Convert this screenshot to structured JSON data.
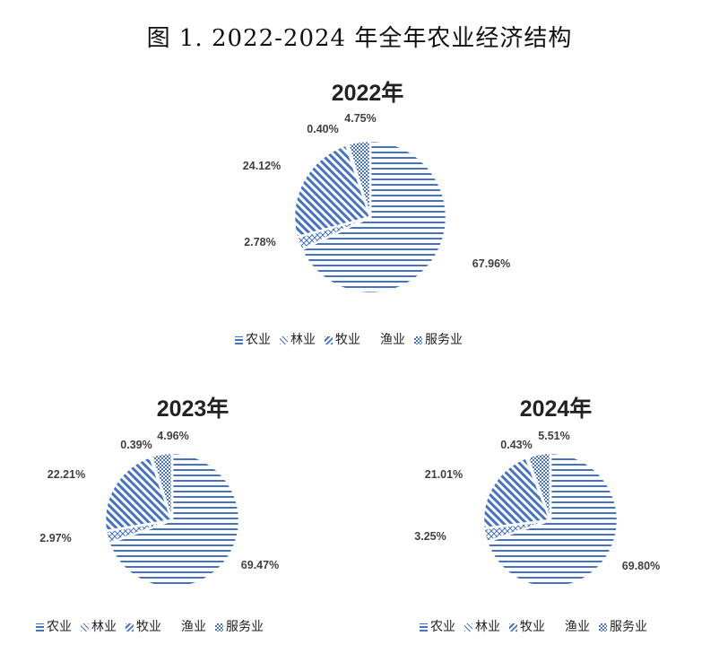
{
  "figure_title": "图 1. 2022-2024 年全年农业经济结构",
  "chart_data": [
    {
      "type": "pie",
      "title": "2022年",
      "categories": [
        "农业",
        "林业",
        "牧业",
        "渔业",
        "服务业"
      ],
      "values": [
        67.96,
        2.78,
        24.12,
        0.4,
        4.75
      ],
      "labels": [
        "67.96%",
        "2.78%",
        "24.12%",
        "0.40%",
        "4.75%"
      ],
      "legend_position": "bottom"
    },
    {
      "type": "pie",
      "title": "2023年",
      "categories": [
        "农业",
        "林业",
        "牧业",
        "渔业",
        "服务业"
      ],
      "values": [
        69.47,
        2.97,
        22.21,
        0.39,
        4.96
      ],
      "labels": [
        "69.47%",
        "2.97%",
        "22.21%",
        "0.39%",
        "4.96%"
      ],
      "legend_position": "bottom"
    },
    {
      "type": "pie",
      "title": "2024年",
      "categories": [
        "农业",
        "林业",
        "牧业",
        "渔业",
        "服务业"
      ],
      "values": [
        69.8,
        3.25,
        21.01,
        0.43,
        5.51
      ],
      "labels": [
        "69.80%",
        "3.25%",
        "21.01%",
        "0.43%",
        "5.51%"
      ],
      "legend_position": "bottom"
    }
  ],
  "colors": {
    "accent": "#4472C4",
    "label_text": "#404040"
  }
}
